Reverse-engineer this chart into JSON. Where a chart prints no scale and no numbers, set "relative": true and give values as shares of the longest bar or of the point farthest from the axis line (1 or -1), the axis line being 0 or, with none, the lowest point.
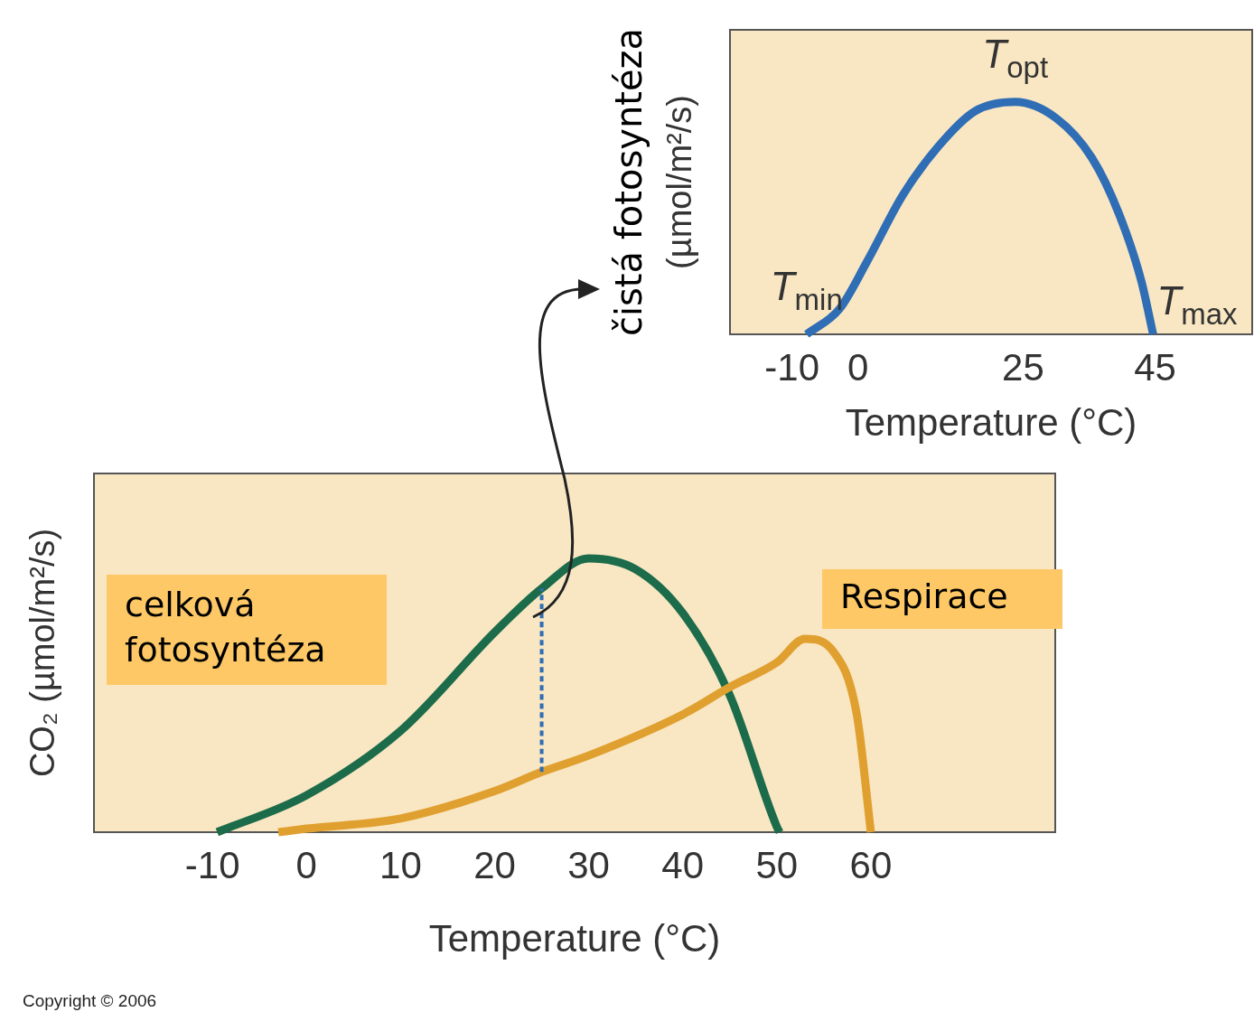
{
  "chart_data": [
    {
      "type": "line",
      "relative": true,
      "xlim": [
        -19.4,
        59.7
      ],
      "xticks": [
        -10,
        0,
        25,
        45
      ],
      "xlabel": "Temperature (°C)",
      "ylabel": "čistá fotosyntéza\n(µmol/m²/s)",
      "series": [
        {
          "color": "#2f6db5",
          "x": [
            -7.8,
            -2.8,
            1.3,
            6.8,
            12.2,
            17.7,
            23.8,
            30,
            35.4,
            39.5,
            42.9,
            44.7
          ],
          "values": [
            0,
            0.11,
            0.31,
            0.6,
            0.81,
            0.96,
            1,
            0.93,
            0.76,
            0.52,
            0.23,
            0
          ]
        }
      ],
      "annotations": [
        {
          "text": "T$_{min}$",
          "x": -7.8,
          "y": 0
        },
        {
          "text": "T$_{opt}$",
          "x": 23.8,
          "y": 1
        },
        {
          "text": "T$_{max}$",
          "x": 44.7,
          "y": 0
        }
      ]
    },
    {
      "type": "line",
      "relative": true,
      "xlim": [
        -22.6,
        79.6
      ],
      "xticks": [
        -10,
        0,
        10,
        20,
        30,
        40,
        50,
        60
      ],
      "xlabel": "Temperature (°C)",
      "ylabel": "CO₂ (µmol/m²/s)",
      "series": [
        {
          "name": "celková fotosyntéza",
          "color": "#1c6b4a",
          "x": [
            -9.5,
            0,
            10,
            20,
            25,
            30,
            35,
            40,
            45,
            50,
            50.3
          ],
          "values": [
            0,
            0.135,
            0.37,
            0.73,
            0.89,
            1,
            0.96,
            0.8,
            0.5,
            0.02,
            0
          ]
        },
        {
          "name": "Respirace",
          "color": "#e0a030",
          "x": [
            -3,
            0,
            10,
            20,
            25,
            30,
            40,
            45,
            50,
            53,
            56,
            58.5,
            60
          ],
          "values": [
            0,
            0.013,
            0.05,
            0.15,
            0.22,
            0.28,
            0.43,
            0.53,
            0.62,
            0.706,
            0.66,
            0.43,
            0
          ]
        },
        {
          "color": "#2f6db5",
          "line_style": "dashed",
          "x": [
            25,
            25
          ],
          "values": [
            0.22,
            0.89
          ]
        }
      ],
      "annotations": [
        "Copyright © 2006"
      ]
    }
  ]
}
